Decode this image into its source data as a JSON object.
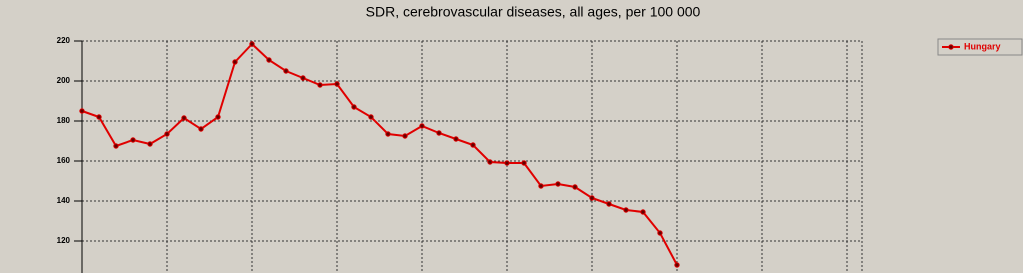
{
  "chart_data": {
    "type": "line",
    "title": "SDR, cerebrovascular diseases, all ages, per 100 000",
    "categories": [
      null,
      null,
      null,
      null,
      null,
      null,
      null,
      null,
      null,
      null,
      null,
      null,
      null,
      null,
      null,
      null,
      null,
      null,
      null,
      null,
      null,
      null,
      null,
      null,
      null,
      null,
      null,
      null,
      null,
      null,
      null,
      null,
      null,
      null,
      null,
      null
    ],
    "series": [
      {
        "name": "Hungary",
        "color": "#e00000",
        "values": [
          185,
          182,
          167.5,
          170.5,
          168.5,
          173.5,
          181.5,
          176,
          182,
          209.5,
          218.5,
          210.5,
          205,
          201.5,
          198,
          198.5,
          187,
          182,
          173.5,
          172.5,
          177.5,
          174,
          171,
          168,
          159.5,
          159,
          159,
          147.5,
          148.5,
          147,
          141.5,
          138.5,
          135.5,
          134.5,
          124,
          108
        ]
      }
    ],
    "ylim": [
      104,
      220
    ],
    "yticks": [
      120,
      140,
      160,
      180,
      200,
      220
    ],
    "grid": true,
    "legend": "top-right"
  }
}
